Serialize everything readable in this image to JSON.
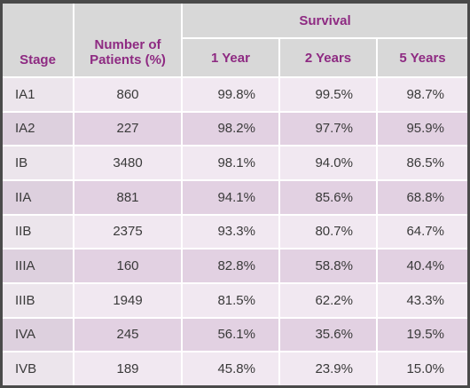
{
  "table": {
    "header": {
      "stage": "Stage",
      "patients": "Number of Patients (%)",
      "survival": "Survival",
      "years": [
        "1 Year",
        "2 Years",
        "5 Years"
      ]
    },
    "rows": [
      [
        "IA1",
        "860",
        "99.8%",
        "99.5%",
        "98.7%"
      ],
      [
        "IA2",
        "227",
        "98.2%",
        "97.7%",
        "95.9%"
      ],
      [
        "IB",
        "3480",
        "98.1%",
        "94.0%",
        "86.5%"
      ],
      [
        "IIA",
        "881",
        "94.1%",
        "85.6%",
        "68.8%"
      ],
      [
        "IIB",
        "2375",
        "93.3%",
        "80.7%",
        "64.7%"
      ],
      [
        "IIIA",
        "160",
        "82.8%",
        "58.8%",
        "40.4%"
      ],
      [
        "IIIB",
        "1949",
        "81.5%",
        "62.2%",
        "43.3%"
      ],
      [
        "IVA",
        "245",
        "56.1%",
        "35.6%",
        "19.5%"
      ],
      [
        "IVB",
        "189",
        "45.8%",
        "23.9%",
        "15.0%"
      ]
    ]
  }
}
